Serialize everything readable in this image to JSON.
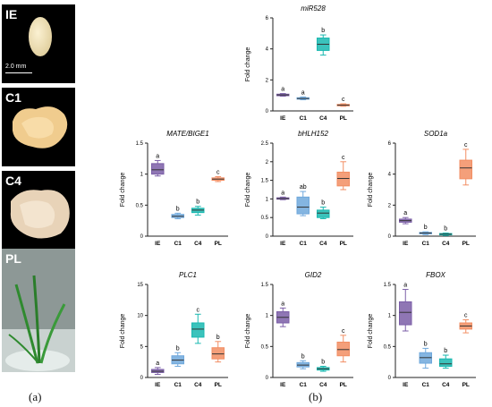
{
  "panel_a": {
    "label": "(a)",
    "photos": [
      {
        "tag": "IE",
        "scale": "2.0 mm"
      },
      {
        "tag": "C1"
      },
      {
        "tag": "C4"
      },
      {
        "tag": "PL"
      }
    ]
  },
  "panel_b": {
    "label": "(b)"
  },
  "colors": {
    "IE": "#7b5ea7",
    "C1": "#6fa8dc",
    "C4": "#19b8b0",
    "PL": "#f28e63"
  },
  "chart_data": [
    {
      "type": "box",
      "title": "miR528",
      "ylabel": "Fold change",
      "categories": [
        "IE",
        "C1",
        "C4",
        "PL"
      ],
      "ylim": [
        0,
        6
      ],
      "yticks": [
        0,
        2,
        4,
        6
      ],
      "boxes": [
        {
          "min": 0.95,
          "q1": 0.98,
          "median": 1.03,
          "q3": 1.08,
          "max": 1.12,
          "label": "a"
        },
        {
          "min": 0.72,
          "q1": 0.76,
          "median": 0.8,
          "q3": 0.85,
          "max": 0.9,
          "label": "a"
        },
        {
          "min": 3.6,
          "q1": 3.9,
          "median": 4.3,
          "q3": 4.7,
          "max": 4.9,
          "label": "b"
        },
        {
          "min": 0.3,
          "q1": 0.33,
          "median": 0.37,
          "q3": 0.42,
          "max": 0.46,
          "label": "c"
        }
      ]
    },
    {
      "type": "box",
      "title": "MATE/BIGE1",
      "ylabel": "Fold change",
      "categories": [
        "IE",
        "C1",
        "C4",
        "PL"
      ],
      "ylim": [
        0,
        1.5
      ],
      "yticks": [
        0,
        0.5,
        1.0,
        1.5
      ],
      "boxes": [
        {
          "min": 0.97,
          "q1": 1.0,
          "median": 1.07,
          "q3": 1.17,
          "max": 1.22,
          "label": "a"
        },
        {
          "min": 0.28,
          "q1": 0.3,
          "median": 0.32,
          "q3": 0.35,
          "max": 0.37,
          "label": "b"
        },
        {
          "min": 0.34,
          "q1": 0.38,
          "median": 0.42,
          "q3": 0.45,
          "max": 0.48,
          "label": "b"
        },
        {
          "min": 0.88,
          "q1": 0.9,
          "median": 0.92,
          "q3": 0.94,
          "max": 0.96,
          "label": "c"
        }
      ]
    },
    {
      "type": "box",
      "title": "bHLH152",
      "ylabel": "Fold change",
      "categories": [
        "IE",
        "C1",
        "C4",
        "PL"
      ],
      "ylim": [
        0,
        2.5
      ],
      "yticks": [
        0,
        0.5,
        1.0,
        1.5,
        2.0,
        2.5
      ],
      "boxes": [
        {
          "min": 0.98,
          "q1": 1.0,
          "median": 1.01,
          "q3": 1.03,
          "max": 1.05,
          "label": "a"
        },
        {
          "min": 0.55,
          "q1": 0.6,
          "median": 0.78,
          "q3": 1.05,
          "max": 1.2,
          "label": "ab"
        },
        {
          "min": 0.47,
          "q1": 0.5,
          "median": 0.62,
          "q3": 0.7,
          "max": 0.78,
          "label": "b"
        },
        {
          "min": 1.25,
          "q1": 1.35,
          "median": 1.55,
          "q3": 1.72,
          "max": 2.0,
          "label": "c"
        }
      ]
    },
    {
      "type": "box",
      "title": "SOD1a",
      "ylabel": "Fold change",
      "categories": [
        "IE",
        "C1",
        "C4",
        "PL"
      ],
      "ylim": [
        0,
        6
      ],
      "yticks": [
        0,
        2,
        4,
        6
      ],
      "boxes": [
        {
          "min": 0.8,
          "q1": 0.9,
          "median": 1.0,
          "q3": 1.1,
          "max": 1.2,
          "label": "a"
        },
        {
          "min": 0.1,
          "q1": 0.15,
          "median": 0.2,
          "q3": 0.24,
          "max": 0.28,
          "label": "b"
        },
        {
          "min": 0.05,
          "q1": 0.1,
          "median": 0.13,
          "q3": 0.17,
          "max": 0.2,
          "label": "b"
        },
        {
          "min": 3.3,
          "q1": 3.7,
          "median": 4.4,
          "q3": 4.9,
          "max": 5.6,
          "label": "c"
        }
      ]
    },
    {
      "type": "box",
      "title": "PLC1",
      "ylabel": "Fold change",
      "categories": [
        "IE",
        "C1",
        "C4",
        "PL"
      ],
      "ylim": [
        0,
        15
      ],
      "yticks": [
        0,
        5,
        10,
        15
      ],
      "boxes": [
        {
          "min": 0.5,
          "q1": 0.8,
          "median": 1.0,
          "q3": 1.3,
          "max": 1.6,
          "label": "a"
        },
        {
          "min": 1.8,
          "q1": 2.2,
          "median": 2.8,
          "q3": 3.5,
          "max": 4.0,
          "label": "b"
        },
        {
          "min": 5.5,
          "q1": 6.5,
          "median": 7.8,
          "q3": 8.8,
          "max": 10.2,
          "label": "c"
        },
        {
          "min": 2.5,
          "q1": 3.0,
          "median": 3.8,
          "q3": 4.8,
          "max": 5.8,
          "label": "b"
        }
      ]
    },
    {
      "type": "box",
      "title": "GID2",
      "ylabel": "Fold change",
      "categories": [
        "IE",
        "C1",
        "C4",
        "PL"
      ],
      "ylim": [
        0,
        1.5
      ],
      "yticks": [
        0,
        0.5,
        1.0,
        1.5
      ],
      "boxes": [
        {
          "min": 0.82,
          "q1": 0.88,
          "median": 0.97,
          "q3": 1.06,
          "max": 1.12,
          "label": "a"
        },
        {
          "min": 0.14,
          "q1": 0.17,
          "median": 0.2,
          "q3": 0.24,
          "max": 0.27,
          "label": "b"
        },
        {
          "min": 0.1,
          "q1": 0.12,
          "median": 0.14,
          "q3": 0.16,
          "max": 0.18,
          "label": "b"
        },
        {
          "min": 0.25,
          "q1": 0.35,
          "median": 0.45,
          "q3": 0.57,
          "max": 0.68,
          "label": "c"
        }
      ]
    },
    {
      "type": "box",
      "title": "FBOX",
      "ylabel": "Fold change",
      "categories": [
        "IE",
        "C1",
        "C4",
        "PL"
      ],
      "ylim": [
        0,
        1.5
      ],
      "yticks": [
        0,
        0.5,
        1.0,
        1.5
      ],
      "boxes": [
        {
          "min": 0.75,
          "q1": 0.85,
          "median": 1.05,
          "q3": 1.22,
          "max": 1.42,
          "label": "a"
        },
        {
          "min": 0.15,
          "q1": 0.23,
          "median": 0.32,
          "q3": 0.4,
          "max": 0.47,
          "label": "b"
        },
        {
          "min": 0.15,
          "q1": 0.18,
          "median": 0.22,
          "q3": 0.3,
          "max": 0.36,
          "label": "b"
        },
        {
          "min": 0.72,
          "q1": 0.78,
          "median": 0.83,
          "q3": 0.88,
          "max": 0.93,
          "label": "c"
        }
      ]
    }
  ]
}
